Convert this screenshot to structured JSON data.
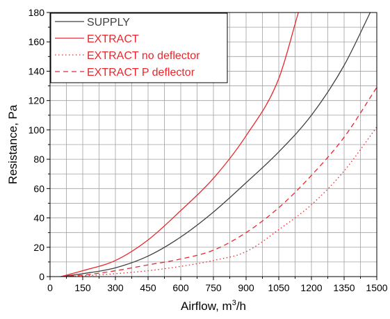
{
  "chart_data": {
    "type": "line",
    "xlabel": "Airflow, m",
    "xlabel_superscript": "3",
    "xlabel_suffix": "/h",
    "ylabel": "Resistance, Pa",
    "xlim": [
      0,
      1500
    ],
    "ylim": [
      0,
      180
    ],
    "x_ticks": [
      0,
      150,
      300,
      450,
      600,
      750,
      900,
      1050,
      1200,
      1350,
      1500
    ],
    "y_ticks": [
      0,
      20,
      40,
      60,
      80,
      100,
      120,
      140,
      160,
      180
    ],
    "grid": true,
    "legend_position": "top-left",
    "series": [
      {
        "name": "SUPPLY",
        "color": "#404040",
        "style": "solid",
        "points": [
          [
            50,
            0
          ],
          [
            150,
            2
          ],
          [
            300,
            6
          ],
          [
            450,
            14
          ],
          [
            600,
            27
          ],
          [
            750,
            44
          ],
          [
            900,
            64
          ],
          [
            1050,
            85
          ],
          [
            1200,
            110
          ],
          [
            1350,
            144
          ],
          [
            1470,
            180
          ]
        ]
      },
      {
        "name": "EXTRACT",
        "color": "#e8262b",
        "style": "solid",
        "points": [
          [
            50,
            0
          ],
          [
            150,
            4
          ],
          [
            300,
            11
          ],
          [
            450,
            25
          ],
          [
            600,
            45
          ],
          [
            750,
            67
          ],
          [
            900,
            96
          ],
          [
            1050,
            135
          ],
          [
            1140,
            180
          ]
        ]
      },
      {
        "name": "EXTRACT no deflector",
        "color": "#e8262b",
        "style": "dotted",
        "points": [
          [
            50,
            0
          ],
          [
            150,
            0.5
          ],
          [
            300,
            2
          ],
          [
            450,
            4
          ],
          [
            600,
            7
          ],
          [
            750,
            11
          ],
          [
            900,
            17
          ],
          [
            1050,
            32
          ],
          [
            1200,
            49
          ],
          [
            1350,
            72
          ],
          [
            1500,
            102
          ]
        ]
      },
      {
        "name": "EXTRACT P deflector",
        "color": "#e8262b",
        "style": "dashed",
        "points": [
          [
            50,
            0
          ],
          [
            150,
            1
          ],
          [
            300,
            4
          ],
          [
            450,
            8
          ],
          [
            600,
            12
          ],
          [
            750,
            18
          ],
          [
            900,
            30
          ],
          [
            1050,
            47
          ],
          [
            1200,
            69
          ],
          [
            1350,
            95
          ],
          [
            1500,
            129
          ]
        ]
      }
    ]
  }
}
